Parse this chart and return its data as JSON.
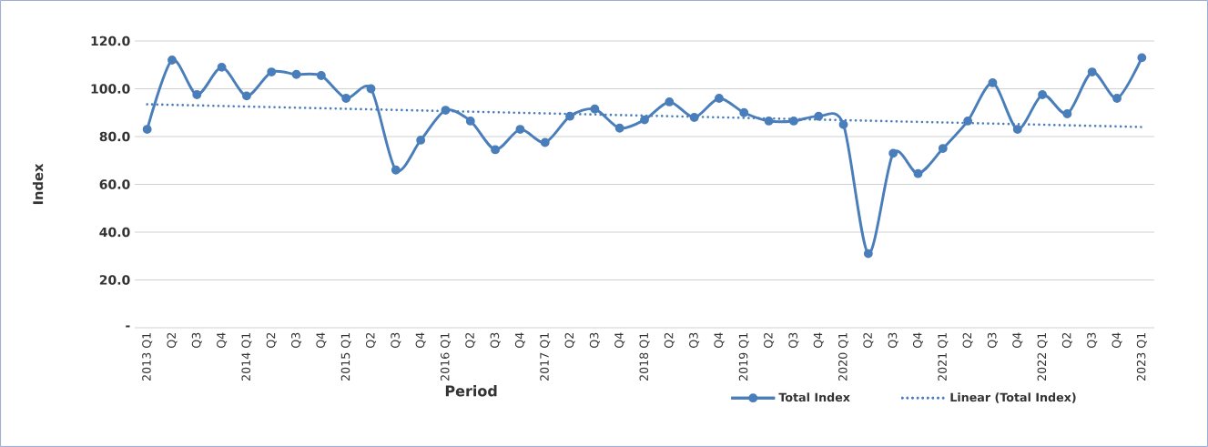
{
  "chart_data": {
    "type": "line",
    "xlabel": "Period",
    "ylabel": "Index",
    "categories": [
      "2013 Q1",
      "Q2",
      "Q3",
      "Q4",
      "2014 Q1",
      "Q2",
      "Q3",
      "Q4",
      "2015 Q1",
      "Q2",
      "Q3",
      "Q4",
      "2016 Q1",
      "Q2",
      "Q3",
      "Q4",
      "2017 Q1",
      "Q2",
      "Q3",
      "Q4",
      "2018 Q1",
      "Q2",
      "Q3",
      "Q4",
      "2019 Q1",
      "Q2",
      "Q3",
      "Q4",
      "2020 Q1",
      "Q2",
      "Q3",
      "Q4",
      "2021 Q1",
      "Q2",
      "Q3",
      "Q4",
      "2022 Q1",
      "Q2",
      "Q3",
      "Q4",
      "2023 Q1"
    ],
    "series": [
      {
        "name": "Total Index",
        "color": "#4a7ebb",
        "marker": "circle",
        "line_style": "solid",
        "values": [
          83,
          112,
          97.5,
          109,
          97,
          107,
          106,
          105.5,
          96,
          100,
          66,
          78.5,
          91,
          86.5,
          74.5,
          83,
          77.5,
          88.5,
          91.5,
          83.5,
          87,
          94.5,
          88,
          96,
          90,
          86.5,
          86.5,
          88.5,
          85,
          31,
          73,
          64.5,
          75,
          86.5,
          102.5,
          83,
          97.5,
          89.5,
          107,
          96,
          113
        ]
      },
      {
        "name": "Linear (Total Index)",
        "color": "#4a7ebb",
        "marker": "none",
        "line_style": "dotted",
        "x": [
          "2013 Q1",
          "2023 Q1"
        ],
        "values": [
          93.5,
          84
        ]
      }
    ],
    "ylim": [
      0,
      120
    ],
    "yticks": [
      {
        "value": 0,
        "label": "-"
      },
      {
        "value": 20,
        "label": "20.0"
      },
      {
        "value": 40,
        "label": "40.0"
      },
      {
        "value": 60,
        "label": "60.0"
      },
      {
        "value": 80,
        "label": "80.0"
      },
      {
        "value": 100,
        "label": "100.0"
      },
      {
        "value": 120,
        "label": "120.0"
      }
    ],
    "grid": "y",
    "legend": "bottom right"
  }
}
